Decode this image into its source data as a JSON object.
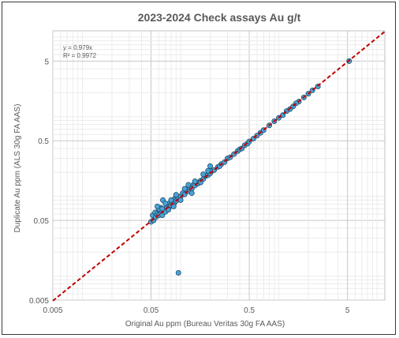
{
  "chart_data": {
    "type": "scatter",
    "title": "2023-2024 Check assays Au g/t",
    "xlabel": "Original Au ppm (Bureau Veritas 30g FA AAS)",
    "ylabel": "Duplicate Au ppm (ALS 30g FA AAS)",
    "x_scale": "log",
    "y_scale": "log",
    "xlim": [
      0.005,
      12
    ],
    "ylim": [
      0.005,
      12
    ],
    "x_ticks": [
      "0.005",
      "0.05",
      "0.5",
      "5"
    ],
    "y_ticks": [
      "0.005",
      "0.05",
      "0.5",
      "5"
    ],
    "grid": true,
    "annotation": {
      "equation": "y = 0.979x",
      "r2": "R² = 0.9972"
    },
    "trendline": {
      "slope": 0.979,
      "color": "#c00000",
      "style": "dashed"
    },
    "marker_color": "#4aa3d6",
    "marker_edge": "#1f4e6e",
    "series": [
      {
        "points": [
          [
            0.05,
            0.048
          ],
          [
            0.052,
            0.058
          ],
          [
            0.053,
            0.05
          ],
          [
            0.055,
            0.063
          ],
          [
            0.056,
            0.055
          ],
          [
            0.058,
            0.06
          ],
          [
            0.06,
            0.058
          ],
          [
            0.062,
            0.066
          ],
          [
            0.063,
            0.072
          ],
          [
            0.064,
            0.062
          ],
          [
            0.066,
            0.09
          ],
          [
            0.068,
            0.065
          ],
          [
            0.07,
            0.07
          ],
          [
            0.072,
            0.075
          ],
          [
            0.074,
            0.08
          ],
          [
            0.076,
            0.072
          ],
          [
            0.078,
            0.083
          ],
          [
            0.08,
            0.078
          ],
          [
            0.082,
            0.085
          ],
          [
            0.084,
            0.09
          ],
          [
            0.086,
            0.082
          ],
          [
            0.088,
            0.095
          ],
          [
            0.09,
            0.088
          ],
          [
            0.092,
            0.1
          ],
          [
            0.095,
            0.094
          ],
          [
            0.06,
            0.07
          ],
          [
            0.065,
            0.058
          ],
          [
            0.07,
            0.064
          ],
          [
            0.075,
            0.068
          ],
          [
            0.058,
            0.075
          ],
          [
            0.1,
            0.1
          ],
          [
            0.105,
            0.11
          ],
          [
            0.11,
            0.106
          ],
          [
            0.115,
            0.12
          ],
          [
            0.12,
            0.116
          ],
          [
            0.125,
            0.128
          ],
          [
            0.13,
            0.125
          ],
          [
            0.135,
            0.14
          ],
          [
            0.14,
            0.137
          ],
          [
            0.145,
            0.15
          ],
          [
            0.15,
            0.145
          ],
          [
            0.16,
            0.158
          ],
          [
            0.17,
            0.165
          ],
          [
            0.18,
            0.18
          ],
          [
            0.19,
            0.185
          ],
          [
            0.2,
            0.195
          ],
          [
            0.21,
            0.21
          ],
          [
            0.22,
            0.215
          ],
          [
            0.24,
            0.235
          ],
          [
            0.26,
            0.255
          ],
          [
            0.28,
            0.27
          ],
          [
            0.3,
            0.3
          ],
          [
            0.32,
            0.31
          ],
          [
            0.35,
            0.34
          ],
          [
            0.38,
            0.37
          ],
          [
            0.4,
            0.39
          ],
          [
            0.42,
            0.4
          ],
          [
            0.45,
            0.44
          ],
          [
            0.48,
            0.46
          ],
          [
            0.5,
            0.49
          ],
          [
            0.55,
            0.53
          ],
          [
            0.6,
            0.58
          ],
          [
            0.65,
            0.63
          ],
          [
            0.7,
            0.68
          ],
          [
            0.8,
            0.78
          ],
          [
            0.9,
            0.88
          ],
          [
            1.0,
            0.97
          ],
          [
            1.1,
            1.05
          ],
          [
            1.2,
            1.18
          ],
          [
            1.4,
            1.35
          ],
          [
            1.6,
            1.55
          ],
          [
            1.8,
            1.75
          ],
          [
            2.0,
            1.95
          ],
          [
            2.2,
            2.15
          ],
          [
            2.5,
            2.4
          ],
          [
            0.12,
            0.14
          ],
          [
            0.13,
            0.11
          ],
          [
            0.16,
            0.15
          ],
          [
            0.17,
            0.19
          ],
          [
            0.2,
            0.21
          ],
          [
            0.14,
            0.155
          ],
          [
            0.11,
            0.125
          ],
          [
            0.09,
            0.105
          ],
          [
            0.08,
            0.09
          ],
          [
            0.085,
            0.075
          ],
          [
            0.07,
            0.082
          ],
          [
            0.065,
            0.07
          ],
          [
            0.1,
            0.09
          ],
          [
            0.2,
            0.24
          ],
          [
            0.25,
            0.24
          ],
          [
            0.19,
            0.21
          ],
          [
            1.3,
            1.25
          ],
          [
            1.5,
            1.48
          ],
          [
            5.2,
            5.0
          ],
          [
            0.095,
            0.011
          ]
        ]
      }
    ]
  }
}
